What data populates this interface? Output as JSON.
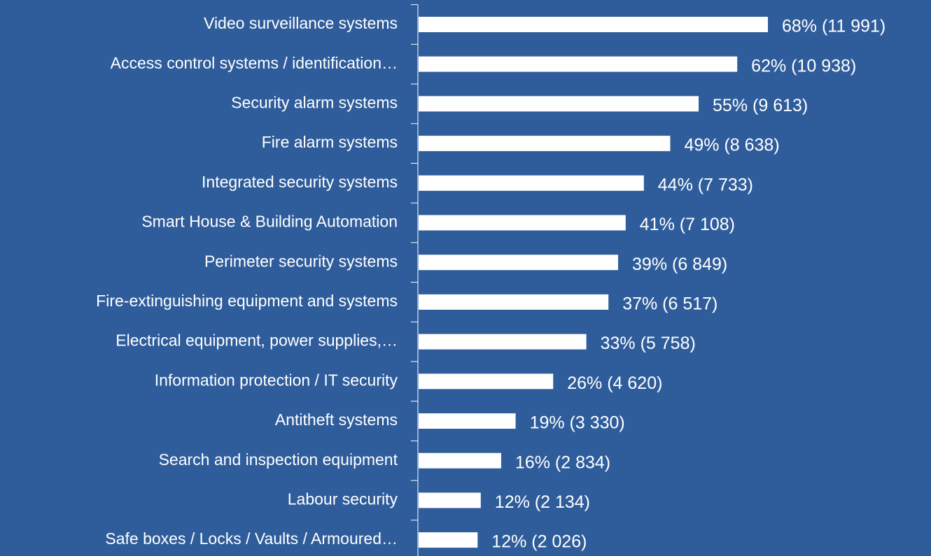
{
  "chart_data": {
    "type": "hbar",
    "categories": [
      "Video surveillance systems",
      "Access control systems / identification…",
      "Security alarm systems",
      "Fire alarm systems",
      "Integrated security systems",
      "Smart House & Building Automation",
      "Perimeter security systems",
      "Fire-extinguishing equipment and systems",
      "Electrical equipment, power supplies,…",
      "Information protection / IT security",
      "Antitheft systems",
      "Search and inspection equipment",
      "Labour security",
      "Safe boxes / Locks / Vaults / Armoured…"
    ],
    "values": [
      11991,
      10938,
      9613,
      8638,
      7733,
      7108,
      6849,
      6517,
      5758,
      4620,
      3330,
      2834,
      2134,
      2026
    ],
    "value_labels": [
      "68% (11 991)",
      "62% (10 938)",
      "55% (9 613)",
      "49% (8 638)",
      "44% (7 733)",
      "41% (7 108)",
      "39% (6 849)",
      "37% (6 517)",
      "33% (5 758)",
      "26% (4 620)",
      "19% (3 330)",
      "16% (2 834)",
      "12% (2 134)",
      "12% (2 026)"
    ],
    "color": "#ffffff"
  }
}
